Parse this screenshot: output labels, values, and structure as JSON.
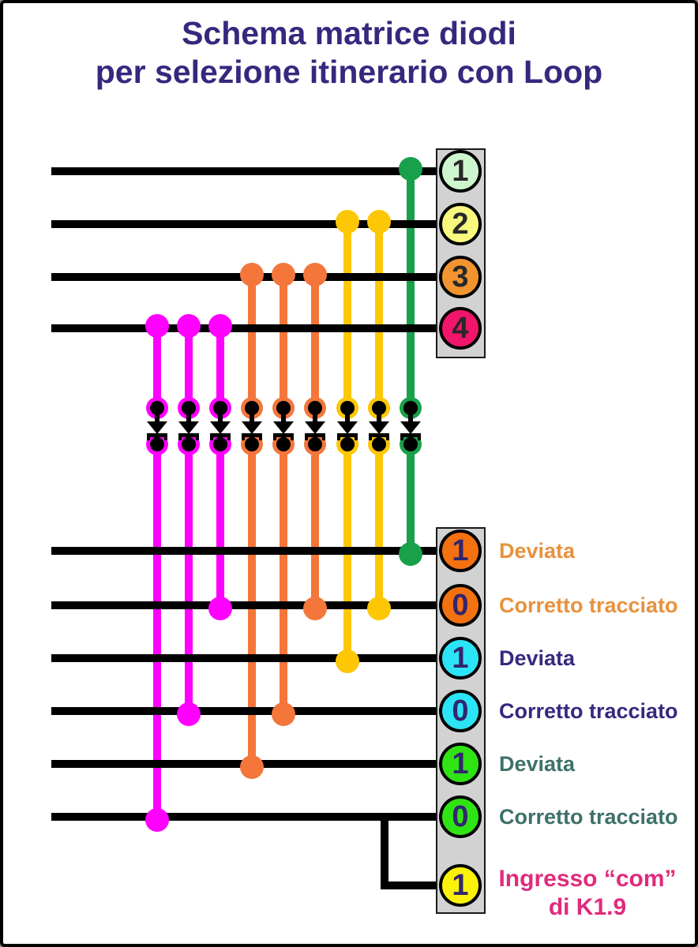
{
  "title": {
    "line1": "Schema matrice diodi",
    "line2": "per selezione itinerario con Loop",
    "color": "#37277e"
  },
  "colors": {
    "magenta": "#ff00ff",
    "orange": "#f4763b",
    "yellow": "#fdc705",
    "green": "#18a04b",
    "box_fill": "#d2d2d2",
    "box_border": "#1a1a1a",
    "wire_black": "#000000",
    "top_digit": "#282828",
    "bottom_digit": "#33256e"
  },
  "top_bus": {
    "rows": [
      {
        "num": "1",
        "fill": "#cef6ce"
      },
      {
        "num": "2",
        "fill": "#f8f87e"
      },
      {
        "num": "3",
        "fill": "#f19430"
      },
      {
        "num": "4",
        "fill": "#f1156b"
      }
    ]
  },
  "bottom_bus": {
    "rows": [
      {
        "num": "1",
        "fill": "#f47110",
        "label": "Deviata",
        "label_color": "#e8913d"
      },
      {
        "num": "0",
        "fill": "#f47110",
        "label": "Corretto tracciato",
        "label_color": "#e8913d"
      },
      {
        "num": "1",
        "fill": "#2be4f6",
        "label": "Deviata",
        "label_color": "#38287e"
      },
      {
        "num": "0",
        "fill": "#2be4f6",
        "label": "Corretto tracciato",
        "label_color": "#38287e"
      },
      {
        "num": "1",
        "fill": "#30e414",
        "label": "Deviata",
        "label_color": "#3e7168"
      },
      {
        "num": "0",
        "fill": "#30e414",
        "label": "Corretto tracciato",
        "label_color": "#3e7168"
      }
    ]
  },
  "com_terminal": {
    "num": "1",
    "fill": "#fbf209",
    "label_line1": "Ingresso “com”",
    "label_line2": "di K1.9",
    "label_color": "#e02a7d"
  },
  "diode_columns": [
    {
      "color": "magenta",
      "top_row": 4,
      "bottom_row": 6
    },
    {
      "color": "magenta",
      "top_row": 4,
      "bottom_row": 4
    },
    {
      "color": "magenta",
      "top_row": 4,
      "bottom_row": 2
    },
    {
      "color": "orange",
      "top_row": 3,
      "bottom_row": 5
    },
    {
      "color": "orange",
      "top_row": 3,
      "bottom_row": 4
    },
    {
      "color": "orange",
      "top_row": 3,
      "bottom_row": 2
    },
    {
      "color": "yellow",
      "top_row": 2,
      "bottom_row": 3
    },
    {
      "color": "yellow",
      "top_row": 2,
      "bottom_row": 2
    },
    {
      "color": "green",
      "top_row": 1,
      "bottom_row": 1
    }
  ]
}
